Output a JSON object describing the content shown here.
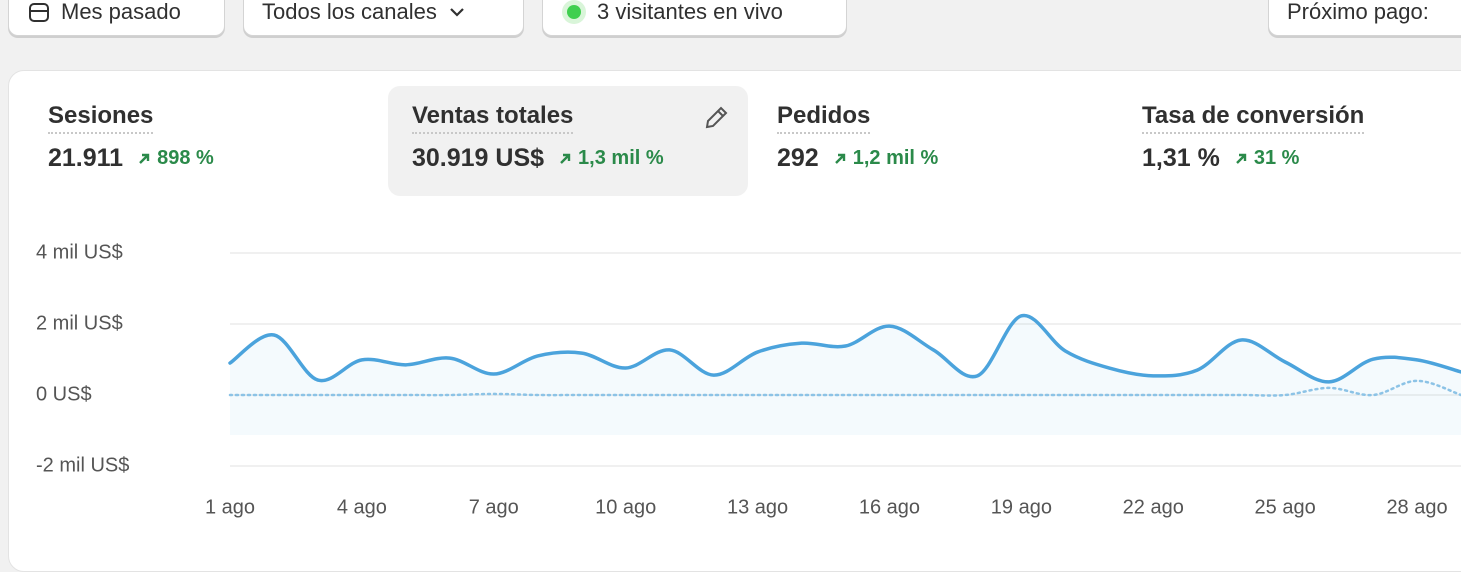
{
  "toolbar": {
    "period": "Mes pasado",
    "channels": "Todos los canales",
    "live": "3 visitantes en vivo",
    "payout": "Próximo pago:"
  },
  "metrics": [
    {
      "label": "Sesiones",
      "value": "21.911",
      "change": "898 %"
    },
    {
      "label": "Ventas totales",
      "value": "30.919 US$",
      "change": "1,3 mil %"
    },
    {
      "label": "Pedidos",
      "value": "292",
      "change": "1,2 mil %"
    },
    {
      "label": "Tasa de conversión",
      "value": "1,31 %",
      "change": "31 %"
    }
  ],
  "chart_data": {
    "type": "line",
    "categories": [
      "1 ago",
      null,
      null,
      "4 ago",
      null,
      null,
      "7 ago",
      null,
      null,
      "10 ago",
      null,
      null,
      "13 ago",
      null,
      null,
      "16 ago",
      null,
      null,
      "19 ago",
      null,
      null,
      "22 ago",
      null,
      null,
      "25 ago",
      null,
      null,
      "28 ago",
      null
    ],
    "series": [
      {
        "color": "#4ba3dc",
        "values": [
          900,
          1690,
          420,
          990,
          850,
          1040,
          590,
          1100,
          1180,
          760,
          1270,
          560,
          1210,
          1460,
          1380,
          1940,
          1270,
          540,
          2230,
          1240,
          760,
          540,
          700,
          1550,
          930,
          370,
          1010,
          990,
          650
        ],
        "fill": true
      },
      {
        "color": "#8cc3e6",
        "values": [
          0,
          0,
          0,
          0,
          0,
          0,
          30,
          0,
          0,
          0,
          0,
          0,
          0,
          0,
          0,
          0,
          0,
          0,
          0,
          0,
          0,
          0,
          0,
          0,
          0,
          200,
          0,
          400,
          0
        ],
        "dotted": true
      }
    ],
    "ylim": [
      -2000,
      4000
    ],
    "yticks": [
      {
        "value": -2000,
        "label": "-2 mil US$"
      },
      {
        "value": 0,
        "label": "0 US$"
      },
      {
        "value": 2000,
        "label": "2 mil US$"
      },
      {
        "value": 4000,
        "label": "4 mil US$"
      }
    ],
    "grid": true
  }
}
